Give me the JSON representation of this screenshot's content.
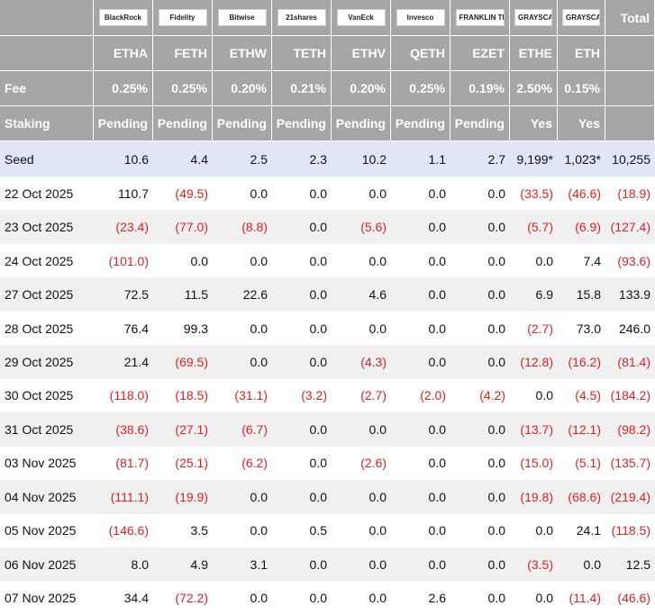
{
  "header": {
    "logos": [
      "BlackRock",
      "Fidelity",
      "Bitwise",
      "21shares",
      "VanEck",
      "Invesco",
      "FRANKLIN TEMPLETON",
      "GRAYSCALE",
      "GRAYSCALE"
    ],
    "total": "Total",
    "tickers": [
      "ETHA",
      "FETH",
      "ETHW",
      "TETH",
      "ETHV",
      "QETH",
      "EZET",
      "ETHE",
      "ETH"
    ]
  },
  "rows": [
    {
      "label": "Fee",
      "cells": [
        "0.25%",
        "0.25%",
        "0.20%",
        "0.21%",
        "0.20%",
        "0.25%",
        "0.19%",
        "2.50%",
        "0.15%"
      ]
    },
    {
      "label": "Staking",
      "cells": [
        "Pending",
        "Pending",
        "Pending",
        "Pending",
        "Pending",
        "Pending",
        "Pending",
        "Yes",
        "Yes"
      ]
    },
    {
      "label": "Seed",
      "cells": [
        "10.6",
        "4.4",
        "2.5",
        "2.3",
        "10.2",
        "1.1",
        "2.7",
        "9,199*",
        "1,023*",
        "10,255"
      ]
    },
    {
      "label": "22 Oct 2025",
      "cells": [
        "110.7",
        "(49.5)",
        "0.0",
        "0.0",
        "0.0",
        "0.0",
        "0.0",
        "(33.5)",
        "(46.6)",
        "(18.9)"
      ]
    },
    {
      "label": "23 Oct 2025",
      "cells": [
        "(23.4)",
        "(77.0)",
        "(8.8)",
        "0.0",
        "(5.6)",
        "0.0",
        "0.0",
        "(5.7)",
        "(6.9)",
        "(127.4)"
      ]
    },
    {
      "label": "24 Oct 2025",
      "cells": [
        "(101.0)",
        "0.0",
        "0.0",
        "0.0",
        "0.0",
        "0.0",
        "0.0",
        "0.0",
        "7.4",
        "(93.6)"
      ]
    },
    {
      "label": "27 Oct 2025",
      "cells": [
        "72.5",
        "11.5",
        "22.6",
        "0.0",
        "4.6",
        "0.0",
        "0.0",
        "6.9",
        "15.8",
        "133.9"
      ]
    },
    {
      "label": "28 Oct 2025",
      "cells": [
        "76.4",
        "99.3",
        "0.0",
        "0.0",
        "0.0",
        "0.0",
        "0.0",
        "(2.7)",
        "73.0",
        "246.0"
      ]
    },
    {
      "label": "29 Oct 2025",
      "cells": [
        "21.4",
        "(69.5)",
        "0.0",
        "0.0",
        "(4.3)",
        "0.0",
        "0.0",
        "(12.8)",
        "(16.2)",
        "(81.4)"
      ]
    },
    {
      "label": "30 Oct 2025",
      "cells": [
        "(118.0)",
        "(18.5)",
        "(31.1)",
        "(3.2)",
        "(2.7)",
        "(2.0)",
        "(4.2)",
        "0.0",
        "(4.5)",
        "(184.2)"
      ]
    },
    {
      "label": "31 Oct 2025",
      "cells": [
        "(38.6)",
        "(27.1)",
        "(6.7)",
        "0.0",
        "0.0",
        "0.0",
        "0.0",
        "(13.7)",
        "(12.1)",
        "(98.2)"
      ]
    },
    {
      "label": "03 Nov 2025",
      "cells": [
        "(81.7)",
        "(25.1)",
        "(6.2)",
        "0.0",
        "(2.6)",
        "0.0",
        "0.0",
        "(15.0)",
        "(5.1)",
        "(135.7)"
      ]
    },
    {
      "label": "04 Nov 2025",
      "cells": [
        "(111.1)",
        "(19.9)",
        "0.0",
        "0.0",
        "0.0",
        "0.0",
        "0.0",
        "(19.8)",
        "(68.6)",
        "(219.4)"
      ]
    },
    {
      "label": "05 Nov 2025",
      "cells": [
        "(146.6)",
        "3.5",
        "0.0",
        "0.5",
        "0.0",
        "0.0",
        "0.0",
        "0.0",
        "24.1",
        "(118.5)"
      ]
    },
    {
      "label": "06 Nov 2025",
      "cells": [
        "8.0",
        "4.9",
        "3.1",
        "0.0",
        "0.0",
        "0.0",
        "0.0",
        "(3.5)",
        "0.0",
        "12.5"
      ]
    },
    {
      "label": "07 Nov 2025",
      "cells": [
        "34.4",
        "(72.2)",
        "0.0",
        "0.0",
        "0.0",
        "2.6",
        "0.0",
        "0.0",
        "(11.4)",
        "(46.6)"
      ]
    }
  ]
}
